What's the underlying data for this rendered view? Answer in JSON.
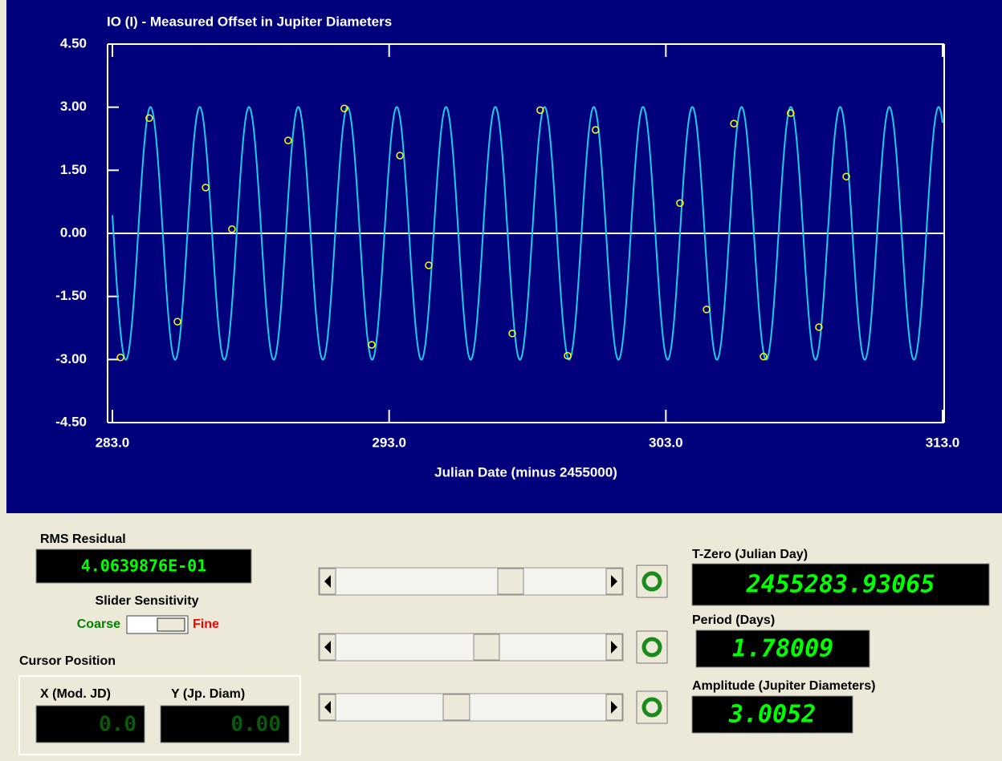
{
  "chart_data": {
    "type": "scatter",
    "title": "IO (I) - Measured Offset in Jupiter Diameters",
    "x_label": "Julian Date (minus 2455000)",
    "x_offset": 2455000,
    "x": [
      283.29,
      284.33,
      285.35,
      286.37,
      287.32,
      289.35,
      291.38,
      292.37,
      293.39,
      294.43,
      297.45,
      298.46,
      299.45,
      300.46,
      303.51,
      304.47,
      305.46,
      306.53,
      307.51,
      308.53,
      309.52
    ],
    "y": [
      -2.95,
      2.74,
      -2.1,
      1.09,
      0.1,
      2.21,
      2.97,
      -2.65,
      1.85,
      -0.76,
      -2.38,
      2.93,
      -2.91,
      2.46,
      0.72,
      -1.81,
      2.61,
      -2.93,
      2.86,
      -2.23,
      1.35
    ],
    "color": "#ffff00",
    "curve_color": "#1ccbe4",
    "xlim": [
      283,
      313
    ],
    "xticks": [
      {
        "value": 283,
        "label": "283.0"
      },
      {
        "value": 293,
        "label": "293.0"
      },
      {
        "value": 303,
        "label": "303.0"
      },
      {
        "value": 313,
        "label": "313.0"
      }
    ],
    "ylim": [
      -4.5,
      4.5
    ],
    "yticks": [
      {
        "value": 4.5,
        "label": "4.50"
      },
      {
        "value": 3,
        "label": "3.00"
      },
      {
        "value": 1.5,
        "label": "1.50"
      },
      {
        "value": 0,
        "label": "0.00"
      },
      {
        "value": -1.5,
        "label": "-1.50"
      },
      {
        "value": -3,
        "label": "-3.00"
      },
      {
        "value": -4.5,
        "label": "-4.50"
      }
    ],
    "zero_line": true
  },
  "panel": {
    "rms": {
      "label": "RMS Residual",
      "value": "4.0639876E-01"
    },
    "sensitivity": {
      "label": "Slider Sensitivity",
      "coarse": "Coarse",
      "fine": "Fine"
    },
    "cursor": {
      "label": "Cursor Position",
      "x_label": "X (Mod. JD)",
      "x_value": "0.0",
      "y_label": "Y (Jp. Diam)",
      "y_value": "0.00"
    },
    "t_zero": {
      "label": "T-Zero (Julian Day)",
      "value": 2455283.93065
    },
    "period": {
      "label": "Period (Days)",
      "value": 1.78009
    },
    "amplitude": {
      "label": "Amplitude (Jupiter Diameters)",
      "value": 3.0052
    }
  }
}
